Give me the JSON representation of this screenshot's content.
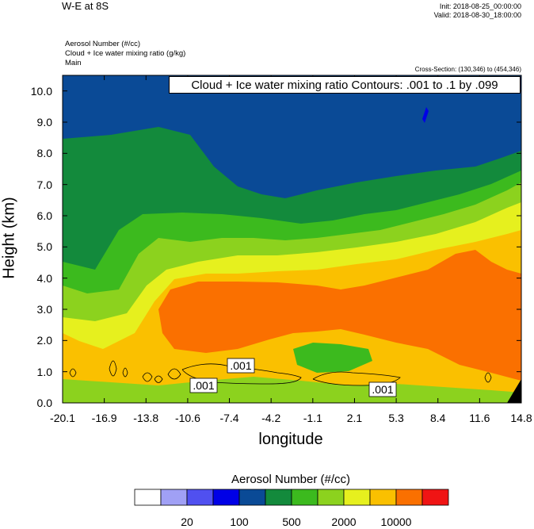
{
  "header": {
    "title": "W-E at 8S",
    "init": "Init: 2018-08-25_00:00:00",
    "valid": "Valid: 2018-08-30_18:00:00",
    "field1": "Aerosol Number   (#/cc)",
    "field2": "Cloud + Ice water mixing ratio   (g/kg)",
    "field3": "Main",
    "cross_section": "Cross-Section: (130,346) to (454,346)",
    "contour_label": "Cloud + Ice water mixing ratio Contours: .001 to .1 by .099"
  },
  "chart_data": {
    "type": "heatmap",
    "xlabel": "longitude",
    "ylabel": "Height (km)",
    "x_ticks": [
      "-20.1",
      "-16.9",
      "-13.8",
      "-10.6",
      "-7.4",
      "-4.2",
      "-1.1",
      "2.1",
      "5.3",
      "8.4",
      "11.6",
      "14.8"
    ],
    "y_ticks": [
      "0.0",
      "1.0",
      "2.0",
      "3.0",
      "4.0",
      "5.0",
      "6.0",
      "7.0",
      "8.0",
      "9.0",
      "10.0"
    ],
    "ylim": [
      0,
      10.5
    ],
    "xlim": [
      -20.1,
      14.8
    ],
    "contour_labels": [
      ".001",
      ".001",
      ".001"
    ],
    "colorbar": {
      "title": "Aerosol Number  (#/cc)",
      "colors": [
        "#ffffff",
        "#a0a0f5",
        "#5050f0",
        "#0000e6",
        "#0a4a96",
        "#138a3c",
        "#3cba1e",
        "#8cd21e",
        "#e6f01e",
        "#fac000",
        "#fa7000",
        "#f01414"
      ],
      "tick_labels": [
        "20",
        "100",
        "500",
        "2000",
        "10000"
      ],
      "tick_boundaries": [
        2,
        4,
        6,
        8,
        10
      ]
    },
    "field_colors": {
      "upper": "#0a4a96",
      "green": "#138a3c",
      "lightgreen": "#3cba1e",
      "yellowgreen": "#8cd21e",
      "yellow": "#e6f01e",
      "orange": "#fac000",
      "darkorange": "#fa7000",
      "black": "#000000"
    }
  }
}
